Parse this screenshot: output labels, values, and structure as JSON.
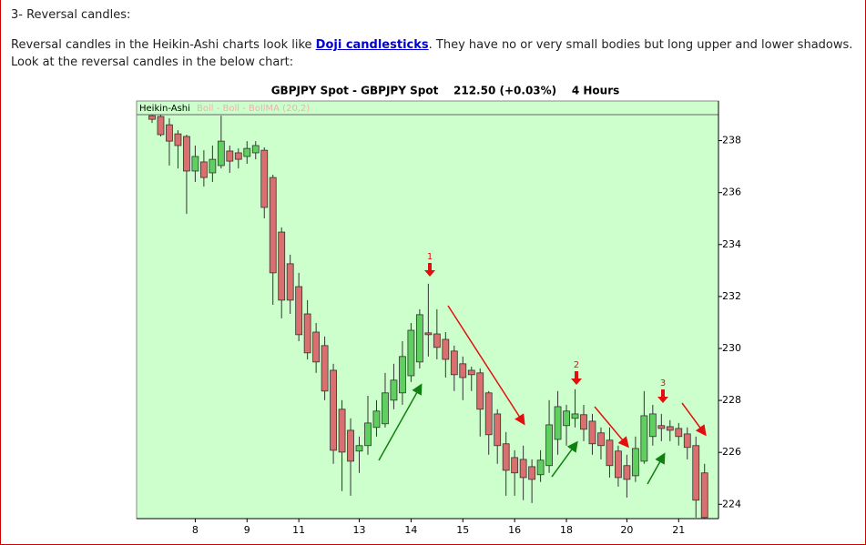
{
  "heading": "3- Reversal candles:",
  "paragraph": {
    "before": "Reversal candles in the Heikin-Ashi charts look like ",
    "link": "Doji candlesticks",
    "after": ". They have no or very small bodies but long upper and lower shadows. Look at the reversal candles in the below chart:"
  },
  "chart_data": {
    "type": "candlestick",
    "title": "GBPJPY Spot - GBPJPY Spot    212.50 (+0.03%)    4 Hours",
    "panel_label": "Heikin-Ashi",
    "indicator_label": "Boll - Boll - BollMA (20,2)",
    "background": "#ccffcc",
    "up_color": "#5fcf5f",
    "down_color": "#d9706f",
    "categories": [
      null,
      null,
      null,
      null,
      null,
      "8",
      null,
      null,
      null,
      null,
      null,
      "9",
      null,
      null,
      null,
      null,
      null,
      "11",
      null,
      null,
      null,
      null,
      null,
      null,
      "13",
      null,
      null,
      null,
      null,
      null,
      "14",
      null,
      null,
      null,
      null,
      null,
      "15",
      null,
      null,
      null,
      null,
      null,
      "16",
      null,
      null,
      null,
      null,
      null,
      "18",
      null,
      null,
      null,
      null,
      null,
      null,
      "20",
      null,
      null,
      null,
      null,
      null,
      "21",
      null,
      null,
      null
    ],
    "open": [
      238.96,
      238.93,
      238.61,
      238.26,
      238.16,
      236.83,
      237.18,
      236.76,
      237.04,
      237.6,
      237.53,
      237.39,
      237.53,
      237.63,
      236.58,
      234.48,
      233.26,
      232.38,
      231.33,
      230.63,
      230.11,
      229.16,
      227.66,
      226.85,
      226.05,
      226.26,
      226.96,
      227.1,
      228.01,
      228.29,
      228.95,
      229.48,
      230.6,
      230.56,
      230.35,
      229.9,
      229.41,
      229.16,
      229.06,
      228.29,
      227.48,
      226.33,
      225.8,
      225.73,
      225.45,
      225.14,
      225.49,
      226.5,
      227.03,
      227.31,
      227.45,
      227.2,
      226.75,
      226.47,
      226.05,
      225.49,
      225.1,
      225.66,
      226.61,
      227.03,
      226.99,
      226.92,
      226.71,
      226.26,
      225.21
    ],
    "high": [
      238.99,
      238.99,
      238.86,
      238.4,
      238.23,
      237.81,
      237.63,
      237.81,
      238.96,
      237.81,
      237.7,
      237.98,
      237.98,
      237.74,
      236.69,
      234.66,
      233.61,
      232.91,
      231.86,
      230.98,
      230.46,
      229.41,
      228.01,
      227.31,
      226.61,
      228.18,
      228.01,
      229.06,
      229.41,
      230.28,
      230.98,
      231.51,
      232.49,
      231.51,
      230.63,
      230.11,
      229.69,
      229.3,
      229.23,
      228.36,
      227.66,
      226.78,
      226.08,
      226.26,
      225.73,
      226.08,
      228.01,
      228.36,
      227.83,
      228.43,
      227.83,
      227.48,
      226.96,
      226.96,
      226.26,
      225.91,
      226.61,
      228.36,
      227.83,
      227.48,
      227.24,
      227.13,
      226.96,
      226.61,
      225.56
    ],
    "low": [
      238.68,
      238.16,
      237.04,
      236.93,
      235.18,
      236.41,
      236.23,
      236.41,
      236.93,
      236.76,
      236.93,
      237.11,
      237.28,
      235.01,
      231.68,
      231.16,
      231.33,
      230.28,
      229.58,
      229.06,
      228.01,
      225.56,
      224.51,
      224.33,
      225.21,
      225.91,
      226.61,
      226.96,
      227.66,
      227.83,
      228.71,
      229.23,
      229.69,
      229.58,
      228.88,
      228.36,
      228.01,
      228.36,
      226.61,
      225.91,
      225.56,
      224.33,
      224.33,
      224.16,
      224.05,
      224.86,
      225.21,
      225.91,
      226.26,
      226.96,
      226.43,
      225.91,
      225.73,
      225.03,
      224.68,
      224.26,
      224.86,
      225.56,
      226.26,
      226.43,
      226.43,
      226.26,
      225.73,
      223.49,
      223.46
    ],
    "close": [
      238.82,
      238.23,
      237.98,
      237.81,
      236.83,
      237.39,
      236.58,
      237.28,
      237.98,
      237.21,
      237.28,
      237.7,
      237.81,
      235.43,
      232.91,
      231.86,
      231.86,
      230.53,
      229.83,
      229.48,
      228.36,
      226.08,
      226.01,
      225.66,
      226.26,
      227.13,
      227.59,
      228.29,
      228.78,
      229.69,
      230.7,
      231.3,
      230.53,
      230.04,
      229.58,
      228.99,
      228.88,
      228.99,
      227.66,
      226.68,
      226.26,
      225.31,
      225.21,
      225.03,
      224.96,
      225.7,
      227.06,
      227.76,
      227.59,
      227.48,
      226.89,
      226.33,
      226.26,
      225.49,
      225.03,
      224.96,
      226.15,
      227.41,
      227.48,
      226.92,
      226.85,
      226.61,
      226.19,
      224.16,
      223.49
    ],
    "ylim": [
      223.45,
      239
    ],
    "yticks": [
      224,
      226,
      228,
      230,
      232,
      234,
      236,
      238
    ],
    "annotations": [
      "1",
      "2",
      "3"
    ]
  }
}
